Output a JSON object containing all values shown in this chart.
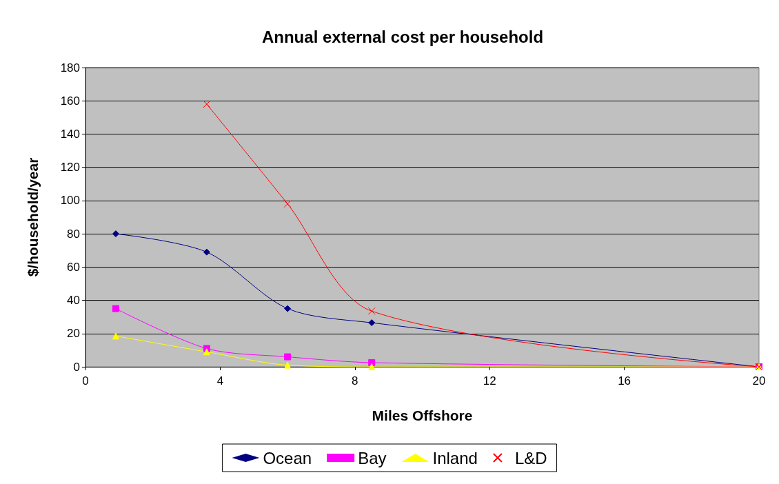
{
  "chart_data": {
    "type": "line",
    "title": "Annual external cost per household",
    "xlabel": "Miles Offshore",
    "ylabel": "$/household/year",
    "xlim": [
      0,
      20
    ],
    "xticks": [
      0,
      4,
      8,
      12,
      16,
      20
    ],
    "ylim": [
      0,
      180
    ],
    "yticks": [
      0,
      20,
      40,
      60,
      80,
      100,
      120,
      140,
      160,
      180
    ],
    "grid": "y",
    "legend": "bottom",
    "series": [
      {
        "name": "Ocean",
        "color": "#000080",
        "marker": "diamond",
        "x": [
          0.9,
          3.6,
          6,
          8.5,
          20
        ],
        "values": [
          80,
          69,
          35,
          26.5,
          0
        ]
      },
      {
        "name": "Bay",
        "color": "#ff00ff",
        "marker": "square",
        "x": [
          0.9,
          3.6,
          6,
          8.5,
          20
        ],
        "values": [
          35,
          11,
          6,
          2.5,
          0
        ]
      },
      {
        "name": "Inland",
        "color": "#ffff00",
        "marker": "triangle",
        "x": [
          0.9,
          3.6,
          6,
          8.5,
          20
        ],
        "values": [
          18.5,
          9,
          1,
          0,
          0
        ]
      },
      {
        "name": "L&D",
        "color": "#ff0000",
        "marker": "cross",
        "x": [
          3.6,
          6,
          8.5,
          20
        ],
        "values": [
          158,
          98,
          33.5,
          0
        ]
      }
    ]
  }
}
